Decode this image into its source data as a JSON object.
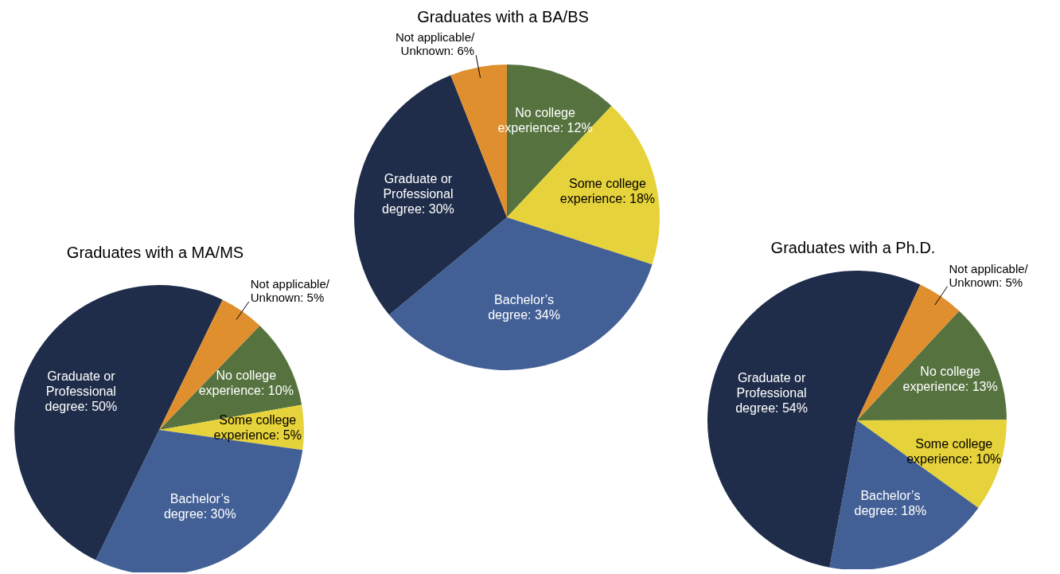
{
  "chart_data": [
    {
      "type": "pie",
      "title": "Graduates with a MA/MS",
      "categories": [
        "No college experience",
        "Some college experience",
        "Bachelor’s degree",
        "Graduate or Professional degree",
        "Not applicable/Unknown"
      ],
      "values": [
        10,
        5,
        30,
        50,
        5
      ],
      "value_labels": [
        "10%",
        "5%",
        "30%",
        "50%",
        "5%"
      ],
      "colors": [
        "#56733f",
        "#e6d23a",
        "#426096",
        "#1f2d4a",
        "#e08f2e"
      ]
    },
    {
      "type": "pie",
      "title": "Graduates with a BA/BS",
      "categories": [
        "No college experience",
        "Some college experience",
        "Bachelor’s degree",
        "Graduate or Professional degree",
        "Not applicable/Unknown"
      ],
      "values": [
        12,
        18,
        34,
        30,
        6
      ],
      "value_labels": [
        "12%",
        "18%",
        "34%",
        "30%",
        "6%"
      ],
      "colors": [
        "#56733f",
        "#e6d23a",
        "#426096",
        "#1f2d4a",
        "#e08f2e"
      ]
    },
    {
      "type": "pie",
      "title": "Graduates with a Ph.D.",
      "categories": [
        "No college experience",
        "Some college experience",
        "Bachelor’s degree",
        "Graduate or Professional degree",
        "Not applicable/Unknown"
      ],
      "values": [
        13,
        10,
        18,
        54,
        5
      ],
      "value_labels": [
        "13%",
        "10%",
        "18%",
        "54%",
        "5%"
      ],
      "colors": [
        "#56733f",
        "#e6d23a",
        "#426096",
        "#1f2d4a",
        "#e08f2e"
      ]
    }
  ]
}
